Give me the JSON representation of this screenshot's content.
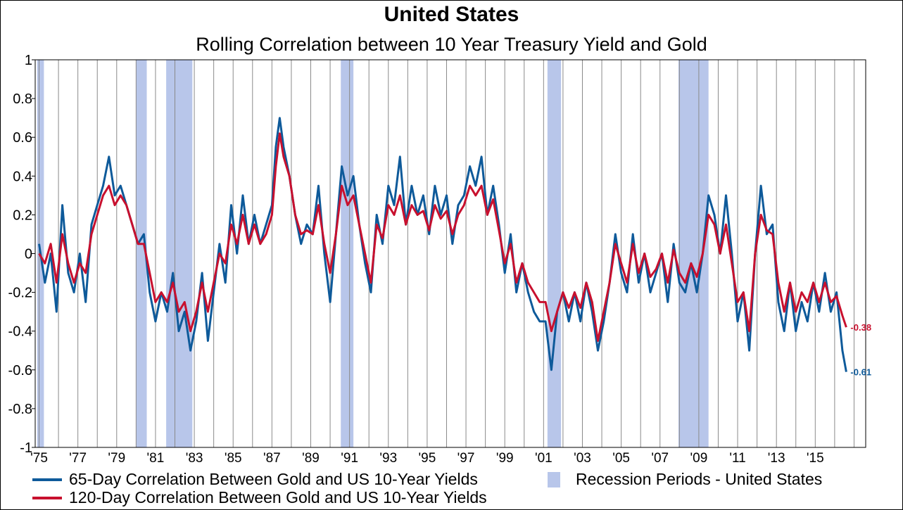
{
  "chart_data": {
    "type": "line",
    "title": "United States",
    "subtitle": "Rolling Correlation between 10 Year Treasury Yield and Gold",
    "ylim": [
      -1,
      1
    ],
    "yticks": [
      "1",
      "0.8",
      "0.6",
      "0.4",
      "0.2",
      "0",
      "-0.2",
      "-0.4",
      "-0.6",
      "-0.8",
      "-1"
    ],
    "ytick_values": [
      1,
      0.8,
      0.6,
      0.4,
      0.2,
      0,
      -0.2,
      -0.4,
      -0.6,
      -0.8,
      -1
    ],
    "xlim": [
      1974.8,
      2017.6
    ],
    "xticks": [
      "'75",
      "'77",
      "'79",
      "'81",
      "'83",
      "'85",
      "'87",
      "'89",
      "'91",
      "'93",
      "'95",
      "'97",
      "'99",
      "'01",
      "'03",
      "'05",
      "'07",
      "'09",
      "'11",
      "'13",
      "'15"
    ],
    "xtick_values": [
      1975,
      1977,
      1979,
      1981,
      1983,
      1985,
      1987,
      1989,
      1991,
      1993,
      1995,
      1997,
      1999,
      2001,
      2003,
      2005,
      2007,
      2009,
      2011,
      2013,
      2015
    ],
    "grid": "vertical",
    "legend_placement": "bottom",
    "recessions": [
      [
        1974.9,
        1975.25
      ],
      [
        1980.0,
        1980.55
      ],
      [
        1981.55,
        1982.9
      ],
      [
        1990.55,
        1991.2
      ],
      [
        2001.2,
        2001.9
      ],
      [
        2007.95,
        2009.5
      ]
    ],
    "series": [
      {
        "name": "65-Day Correlation Between Gold and US 10-Year Yields",
        "color": "#0e5a9a",
        "x": [
          1975.0,
          1975.3,
          1975.6,
          1975.9,
          1976.2,
          1976.5,
          1976.8,
          1977.1,
          1977.4,
          1977.7,
          1978.0,
          1978.3,
          1978.6,
          1978.9,
          1979.2,
          1979.5,
          1979.8,
          1980.1,
          1980.4,
          1980.7,
          1981.0,
          1981.3,
          1981.6,
          1981.9,
          1982.2,
          1982.5,
          1982.8,
          1983.1,
          1983.4,
          1983.7,
          1984.0,
          1984.3,
          1984.6,
          1984.9,
          1985.2,
          1985.5,
          1985.8,
          1986.1,
          1986.4,
          1986.7,
          1987.0,
          1987.2,
          1987.4,
          1987.6,
          1987.9,
          1988.2,
          1988.5,
          1988.8,
          1989.1,
          1989.4,
          1989.7,
          1990.0,
          1990.3,
          1990.6,
          1990.9,
          1991.2,
          1991.5,
          1991.8,
          1992.1,
          1992.4,
          1992.7,
          1993.0,
          1993.3,
          1993.6,
          1993.9,
          1994.2,
          1994.5,
          1994.8,
          1995.1,
          1995.4,
          1995.7,
          1996.0,
          1996.3,
          1996.6,
          1996.9,
          1997.2,
          1997.5,
          1997.8,
          1998.1,
          1998.4,
          1998.7,
          1999.0,
          1999.3,
          1999.6,
          1999.9,
          2000.2,
          2000.5,
          2000.8,
          2001.1,
          2001.4,
          2001.7,
          2002.0,
          2002.3,
          2002.6,
          2002.9,
          2003.2,
          2003.5,
          2003.8,
          2004.1,
          2004.4,
          2004.7,
          2005.0,
          2005.3,
          2005.6,
          2005.9,
          2006.2,
          2006.5,
          2006.8,
          2007.1,
          2007.4,
          2007.7,
          2008.0,
          2008.3,
          2008.6,
          2008.9,
          2009.2,
          2009.5,
          2009.8,
          2010.1,
          2010.4,
          2010.7,
          2011.0,
          2011.3,
          2011.6,
          2011.9,
          2012.2,
          2012.5,
          2012.8,
          2013.1,
          2013.4,
          2013.7,
          2014.0,
          2014.3,
          2014.6,
          2014.9,
          2015.2,
          2015.5,
          2015.8,
          2016.1,
          2016.4,
          2016.6
        ],
        "values": [
          0.05,
          -0.15,
          0.0,
          -0.3,
          0.25,
          -0.1,
          -0.2,
          0.0,
          -0.25,
          0.15,
          0.25,
          0.35,
          0.5,
          0.3,
          0.35,
          0.25,
          0.15,
          0.05,
          0.1,
          -0.2,
          -0.35,
          -0.2,
          -0.3,
          -0.1,
          -0.4,
          -0.3,
          -0.5,
          -0.35,
          -0.1,
          -0.45,
          -0.2,
          0.05,
          -0.15,
          0.25,
          0.0,
          0.3,
          0.05,
          0.2,
          0.05,
          0.15,
          0.25,
          0.55,
          0.7,
          0.55,
          0.4,
          0.2,
          0.05,
          0.15,
          0.1,
          0.35,
          0.0,
          -0.25,
          0.1,
          0.45,
          0.3,
          0.4,
          0.15,
          -0.05,
          -0.2,
          0.2,
          0.05,
          0.35,
          0.25,
          0.5,
          0.15,
          0.35,
          0.2,
          0.3,
          0.1,
          0.35,
          0.2,
          0.3,
          0.05,
          0.25,
          0.3,
          0.45,
          0.35,
          0.5,
          0.2,
          0.35,
          0.15,
          -0.1,
          0.1,
          -0.2,
          -0.05,
          -0.2,
          -0.3,
          -0.35,
          -0.35,
          -0.6,
          -0.3,
          -0.2,
          -0.35,
          -0.2,
          -0.35,
          -0.15,
          -0.3,
          -0.5,
          -0.35,
          -0.15,
          0.1,
          -0.1,
          -0.2,
          0.1,
          -0.15,
          0.0,
          -0.2,
          -0.1,
          0.0,
          -0.25,
          0.05,
          -0.15,
          -0.2,
          -0.05,
          -0.2,
          0.0,
          0.3,
          0.2,
          0.0,
          0.3,
          0.0,
          -0.35,
          -0.2,
          -0.5,
          0.0,
          0.35,
          0.1,
          0.15,
          -0.25,
          -0.4,
          -0.15,
          -0.4,
          -0.25,
          -0.35,
          -0.15,
          -0.3,
          -0.1,
          -0.3,
          -0.2,
          -0.5,
          -0.61
        ]
      },
      {
        "name": "120-Day Correlation Between Gold and US 10-Year Yields",
        "color": "#c8102e",
        "x": [
          1975.0,
          1975.3,
          1975.6,
          1975.9,
          1976.2,
          1976.5,
          1976.8,
          1977.1,
          1977.4,
          1977.7,
          1978.0,
          1978.3,
          1978.6,
          1978.9,
          1979.2,
          1979.5,
          1979.8,
          1980.1,
          1980.4,
          1980.7,
          1981.0,
          1981.3,
          1981.6,
          1981.9,
          1982.2,
          1982.5,
          1982.8,
          1983.1,
          1983.4,
          1983.7,
          1984.0,
          1984.3,
          1984.6,
          1984.9,
          1985.2,
          1985.5,
          1985.8,
          1986.1,
          1986.4,
          1986.7,
          1987.0,
          1987.2,
          1987.4,
          1987.6,
          1987.9,
          1988.2,
          1988.5,
          1988.8,
          1989.1,
          1989.4,
          1989.7,
          1990.0,
          1990.3,
          1990.6,
          1990.9,
          1991.2,
          1991.5,
          1991.8,
          1992.1,
          1992.4,
          1992.7,
          1993.0,
          1993.3,
          1993.6,
          1993.9,
          1994.2,
          1994.5,
          1994.8,
          1995.1,
          1995.4,
          1995.7,
          1996.0,
          1996.3,
          1996.6,
          1996.9,
          1997.2,
          1997.5,
          1997.8,
          1998.1,
          1998.4,
          1998.7,
          1999.0,
          1999.3,
          1999.6,
          1999.9,
          2000.2,
          2000.5,
          2000.8,
          2001.1,
          2001.4,
          2001.7,
          2002.0,
          2002.3,
          2002.6,
          2002.9,
          2003.2,
          2003.5,
          2003.8,
          2004.1,
          2004.4,
          2004.7,
          2005.0,
          2005.3,
          2005.6,
          2005.9,
          2006.2,
          2006.5,
          2006.8,
          2007.1,
          2007.4,
          2007.7,
          2008.0,
          2008.3,
          2008.6,
          2008.9,
          2009.2,
          2009.5,
          2009.8,
          2010.1,
          2010.4,
          2010.7,
          2011.0,
          2011.3,
          2011.6,
          2011.9,
          2012.2,
          2012.5,
          2012.8,
          2013.1,
          2013.4,
          2013.7,
          2014.0,
          2014.3,
          2014.6,
          2014.9,
          2015.2,
          2015.5,
          2015.8,
          2016.1,
          2016.4,
          2016.6
        ],
        "values": [
          0.0,
          -0.05,
          0.05,
          -0.15,
          0.1,
          -0.05,
          -0.15,
          -0.05,
          -0.1,
          0.1,
          0.2,
          0.3,
          0.35,
          0.25,
          0.3,
          0.25,
          0.15,
          0.05,
          0.05,
          -0.1,
          -0.25,
          -0.2,
          -0.25,
          -0.15,
          -0.3,
          -0.25,
          -0.4,
          -0.3,
          -0.15,
          -0.3,
          -0.15,
          0.0,
          -0.05,
          0.15,
          0.05,
          0.2,
          0.05,
          0.15,
          0.05,
          0.1,
          0.2,
          0.45,
          0.62,
          0.5,
          0.4,
          0.2,
          0.1,
          0.12,
          0.1,
          0.25,
          0.05,
          -0.1,
          0.1,
          0.35,
          0.25,
          0.3,
          0.15,
          0.0,
          -0.15,
          0.15,
          0.08,
          0.25,
          0.2,
          0.3,
          0.15,
          0.25,
          0.2,
          0.22,
          0.12,
          0.25,
          0.18,
          0.22,
          0.1,
          0.2,
          0.25,
          0.35,
          0.3,
          0.35,
          0.2,
          0.28,
          0.12,
          -0.05,
          0.05,
          -0.15,
          -0.05,
          -0.15,
          -0.2,
          -0.25,
          -0.25,
          -0.4,
          -0.3,
          -0.2,
          -0.28,
          -0.2,
          -0.28,
          -0.15,
          -0.25,
          -0.45,
          -0.3,
          -0.15,
          0.05,
          -0.05,
          -0.15,
          0.05,
          -0.1,
          0.0,
          -0.12,
          -0.08,
          0.0,
          -0.15,
          0.02,
          -0.1,
          -0.15,
          -0.05,
          -0.12,
          0.0,
          0.2,
          0.15,
          0.0,
          0.15,
          -0.05,
          -0.25,
          -0.2,
          -0.4,
          0.0,
          0.2,
          0.12,
          0.1,
          -0.15,
          -0.3,
          -0.15,
          -0.3,
          -0.2,
          -0.25,
          -0.15,
          -0.25,
          -0.15,
          -0.25,
          -0.22,
          -0.32,
          -0.38
        ]
      }
    ],
    "annotations": [
      {
        "text": "-0.38",
        "series": 1
      },
      {
        "text": "-0.61",
        "series": 0
      }
    ],
    "legend": [
      {
        "label": "65-Day Correlation Between Gold and US 10-Year Yields",
        "kind": "line",
        "color": "#0e5a9a"
      },
      {
        "label": "Recession Periods - United States",
        "kind": "box",
        "color": "#b8c6ea"
      },
      {
        "label": "120-Day Correlation Between Gold and US 10-Year Yields",
        "kind": "line",
        "color": "#c8102e"
      }
    ]
  }
}
